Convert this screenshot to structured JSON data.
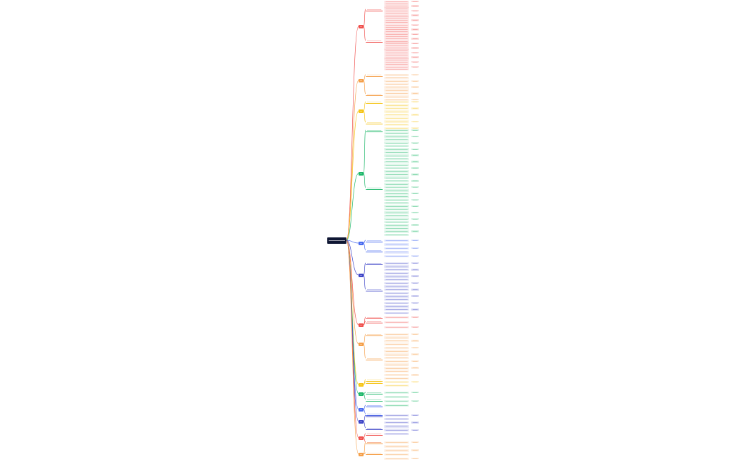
{
  "root": {
    "label": ""
  },
  "branches": [
    {
      "color": "#f0524f",
      "leaf_count": 30
    },
    {
      "color": "#f5a04a",
      "leaf_count": 9
    },
    {
      "color": "#f5c518",
      "leaf_count": 9
    },
    {
      "color": "#1fb86b",
      "leaf_count": 34
    },
    {
      "color": "#4a6cf0",
      "leaf_count": 5
    },
    {
      "color": "#3f46c8",
      "leaf_count": 16
    },
    {
      "color": "#f0524f",
      "leaf_count": 3
    },
    {
      "color": "#f5a04a",
      "leaf_count": 14
    },
    {
      "color": "#f5c518",
      "leaf_count": 2
    },
    {
      "color": "#1fb86b",
      "leaf_count": 4
    },
    {
      "color": "#4a6cf0",
      "leaf_count": 0
    },
    {
      "color": "#3f46c8",
      "leaf_count": 6
    },
    {
      "color": "#f0524f",
      "leaf_count": 0
    },
    {
      "color": "#f5a04a",
      "leaf_count": 5
    }
  ],
  "sub_labels": [
    "",
    ""
  ]
}
